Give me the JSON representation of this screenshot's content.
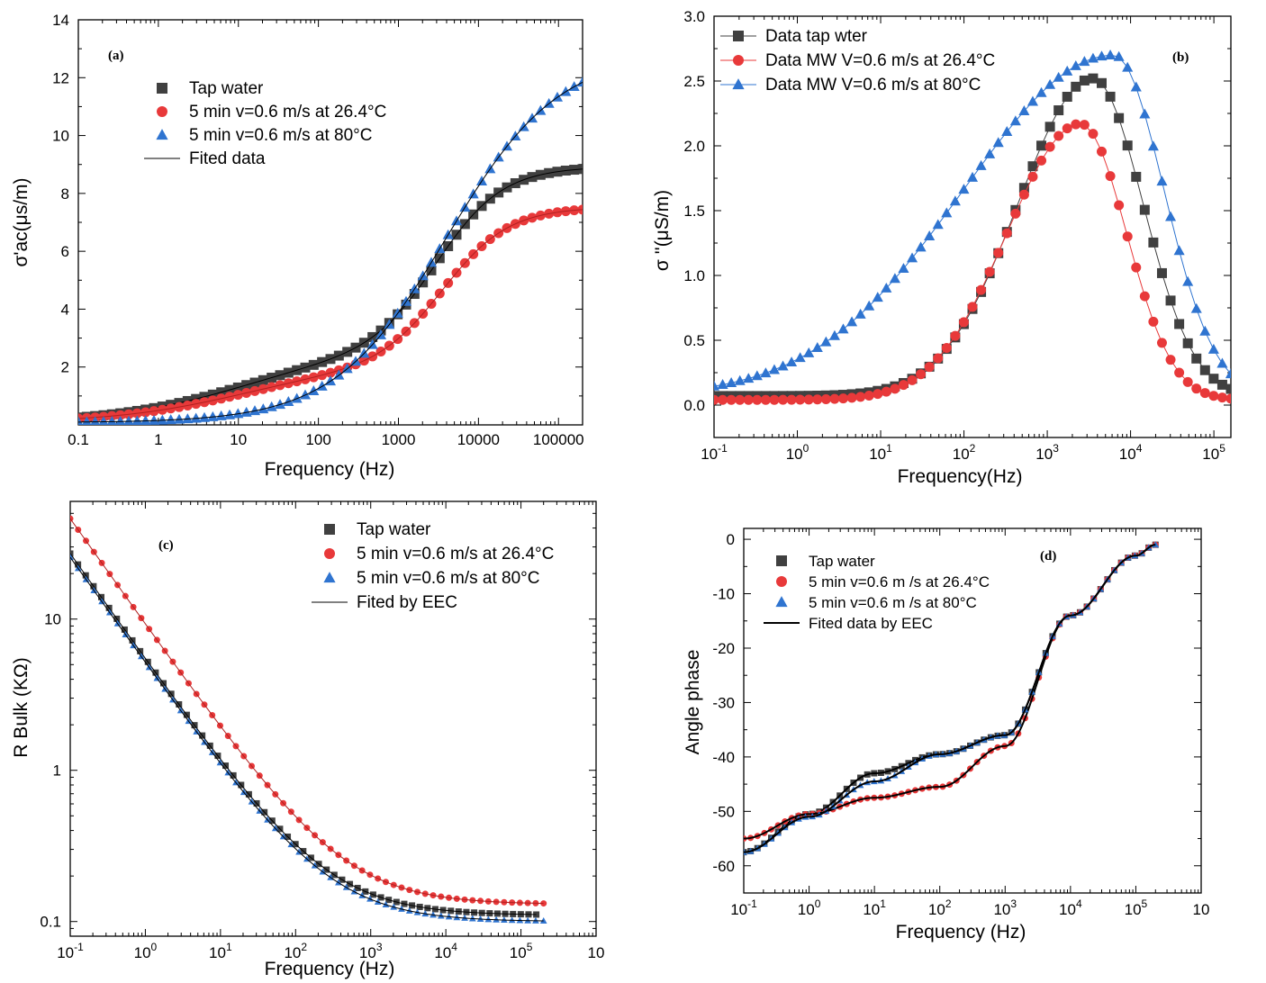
{
  "colors": {
    "black": "#404040",
    "red": "#e8393a",
    "blue": "#2f74d0",
    "fit": "#000000"
  },
  "chart_data": [
    {
      "id": "a",
      "type": "scatter",
      "panel_label": "(a)",
      "xlabel": "Frequency (Hz)",
      "ylabel": "σ'ac(μs/m)",
      "xscale": "log",
      "xlim": [
        0.1,
        200000
      ],
      "ylim": [
        0,
        14
      ],
      "xticks": [
        0.1,
        1,
        10,
        100,
        1000,
        10000,
        100000
      ],
      "xtick_labels": [
        "0.1",
        "1",
        "10",
        "100",
        "1000",
        "10000",
        "100000"
      ],
      "yticks": [
        2,
        4,
        6,
        8,
        10,
        12,
        14
      ],
      "ytick_labels": [
        "2",
        "4",
        "6",
        "8",
        "10",
        "12",
        "14"
      ],
      "legend": [
        "Tap water",
        "5 min v=0.6 m/s at 26.4°C",
        "5 min v=0.6 m/s at 80°C",
        "Fited data"
      ],
      "series": [
        {
          "name": "Tap water",
          "marker": "square",
          "color": "#404040",
          "fit": true,
          "model": {
            "kind": "cond",
            "smin": 0.08,
            "a1": 2.4,
            "f1": 10,
            "p1": 0.55,
            "a2": 6.45,
            "f2": 3000,
            "p2": 1.05
          }
        },
        {
          "name": "5 min v=0.6 m/s at 26.4°C",
          "marker": "circle",
          "color": "#e8393a",
          "fit": true,
          "model": {
            "kind": "cond",
            "smin": 0.08,
            "a1": 1.9,
            "f1": 10,
            "p1": 0.55,
            "a2": 5.55,
            "f2": 3600,
            "p2": 1.05
          }
        },
        {
          "name": "5 min v=0.6 m/s at 80°C",
          "marker": "triangle",
          "color": "#2f74d0",
          "fit": true,
          "model": {
            "kind": "cond",
            "smin": 0.08,
            "a1": 12.8,
            "f1": 4000,
            "p1": 0.62,
            "a2": 0,
            "f2": 1000,
            "p2": 1
          }
        }
      ]
    },
    {
      "id": "b",
      "type": "line",
      "panel_label": "(b)",
      "xlabel": "Frequency(Hz)",
      "ylabel": "σ ''(μS/m)",
      "xscale": "log",
      "xlim": [
        0.1,
        160000
      ],
      "ylim": [
        -0.25,
        3.0
      ],
      "xticks": [
        0.1,
        1,
        10,
        100,
        1000,
        10000,
        100000
      ],
      "xtick_labels": [
        "10-1",
        "100",
        "101",
        "102",
        "103",
        "104",
        "105"
      ],
      "yticks": [
        0.0,
        0.5,
        1.0,
        1.5,
        2.0,
        2.5,
        3.0
      ],
      "ytick_labels": [
        "0.0",
        "0.5",
        "1.0",
        "1.5",
        "2.0",
        "2.5",
        "3.0"
      ],
      "legend": [
        "Data  tap wter",
        "Data MW V=0.6 m/s at 26.4°C",
        "Data MW V=0.6 m/s at  80°C"
      ],
      "series": [
        {
          "name": "Data  tap wter",
          "marker": "square",
          "color": "#404040",
          "model": {
            "kind": "peak",
            "base": 0.07,
            "lfp": 3.55,
            "a": 2.45,
            "w1": 0.9,
            "w2": 0.6,
            "sk": 0.12,
            "fmin": 0.1,
            "fmax": 160000
          }
        },
        {
          "name": "Data MW V=0.6 m/s at 26.4°C",
          "marker": "circle",
          "color": "#e8393a",
          "model": {
            "kind": "peak",
            "base": 0.04,
            "lfp": 3.4,
            "a": 2.13,
            "w1": 0.88,
            "w2": 0.55,
            "sk": 0.1,
            "fmin": 0.1,
            "fmax": 160000
          }
        },
        {
          "name": "Data MW V=0.6 m/s at  80°C",
          "marker": "triangle",
          "color": "#2f74d0",
          "model": {
            "kind": "peak",
            "base": 0.07,
            "lfp": 3.8,
            "a": 2.63,
            "w1": 1.8,
            "w2": 0.6,
            "sk": 0.15,
            "fmin": 0.1,
            "fmax": 160000
          }
        }
      ]
    },
    {
      "id": "c",
      "type": "scatter",
      "panel_label": "(c)",
      "xlabel": "Frequency (Hz)",
      "ylabel": "R Bulk  (KΩ)",
      "xscale": "log",
      "yscale": "log",
      "xlim": [
        0.1,
        1000000
      ],
      "ylim": [
        0.08,
        60
      ],
      "xticks": [
        0.1,
        1,
        10,
        100,
        1000,
        10000,
        100000,
        1000000
      ],
      "xtick_labels": [
        "10-1",
        "100",
        "101",
        "102",
        "103",
        "104",
        "105",
        "10"
      ],
      "yticks": [
        0.1,
        1,
        10
      ],
      "ytick_labels": [
        "0.1",
        "1",
        "10"
      ],
      "legend": [
        "Tap water",
        "5 min v=0.6 m/s at 26.4°C",
        "5 min v=0.6 m/s at 80°C",
        "Fited by EEC"
      ],
      "series": [
        {
          "name": "Tap water",
          "marker": "square",
          "color": "#404040",
          "fit": true,
          "model": {
            "kind": "rbulk",
            "inf": 0.11,
            "a": 27,
            "s": 0.7,
            "fmin": 0.1,
            "fmax": 160000
          }
        },
        {
          "name": "5 min v=0.6 m/s at 26.4°C",
          "marker": "circle",
          "color": "#e8393a",
          "fit": true,
          "model": {
            "kind": "rbulk",
            "inf": 0.13,
            "a": 46,
            "s": 0.7,
            "fmin": 0.1,
            "fmax": 200000
          }
        },
        {
          "name": "5 min v=0.6 m/s at 80°C",
          "marker": "triangle",
          "color": "#2f74d0",
          "fit": true,
          "model": {
            "kind": "rbulk",
            "inf": 0.1,
            "a": 25.5,
            "s": 0.7,
            "fmin": 0.1,
            "fmax": 200000
          }
        }
      ]
    },
    {
      "id": "d",
      "type": "scatter",
      "panel_label": "(d)",
      "xlabel": "Frequency (Hz)",
      "ylabel": "Angle phase",
      "xscale": "log",
      "xlim": [
        0.1,
        1000000
      ],
      "ylim": [
        -65,
        2
      ],
      "xticks": [
        0.1,
        1,
        10,
        100,
        1000,
        10000,
        100000,
        1000000
      ],
      "xtick_labels": [
        "10-1",
        "100",
        "101",
        "102",
        "103",
        "104",
        "105",
        "10"
      ],
      "yticks": [
        0,
        -10,
        -20,
        -30,
        -40,
        -50,
        -60
      ],
      "ytick_labels": [
        "0",
        "-10",
        "-20",
        "-30",
        "-40",
        "-50",
        "-60"
      ],
      "legend": [
        "Tap water",
        "5 min v=0.6 m /s at 26.4°C",
        "5 min v=0.6 m /s at 80°C",
        "Fited data by EEC"
      ],
      "series": [
        {
          "name": "Tap water",
          "marker": "square",
          "color": "#404040",
          "fit": true,
          "model": {
            "kind": "phase",
            "kx": [
              -1,
              0,
              1,
              2,
              3,
              4,
              5,
              5.3
            ],
            "ky": [
              -57.5,
              -50.5,
              -43,
              -39.5,
              -36,
              -14,
              -3,
              -1
            ],
            "fmin": 0.1,
            "fmax": 200000
          }
        },
        {
          "name": "5 min v=0.6 m /s at 26.4°C",
          "marker": "circle",
          "color": "#e8393a",
          "fit": true,
          "model": {
            "kind": "phase",
            "kx": [
              -1,
              0,
              1,
              2,
              3,
              4,
              5,
              5.3
            ],
            "ky": [
              -55,
              -50.5,
              -47.5,
              -45.5,
              -38,
              -14,
              -3,
              -1
            ],
            "fmin": 0.1,
            "fmax": 200000
          }
        },
        {
          "name": "5 min v=0.6 m /s at 80°C",
          "marker": "triangle",
          "color": "#2f74d0",
          "fit": true,
          "model": {
            "kind": "phase",
            "kx": [
              -1,
              0,
              1,
              2,
              3,
              4,
              5,
              5.3
            ],
            "ky": [
              -57.5,
              -51,
              -44.5,
              -39.5,
              -36,
              -14,
              -3,
              -1
            ],
            "fmin": 0.1,
            "fmax": 200000
          }
        }
      ]
    }
  ]
}
